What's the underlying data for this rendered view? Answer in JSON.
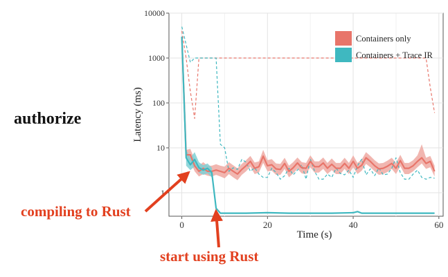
{
  "labels": {
    "side_title": "authorize",
    "annotation_compile": "compiling to Rust",
    "annotation_start": "start using Rust"
  },
  "colors": {
    "annotation": "#e2401f",
    "containers_only": "#e8756a",
    "containers_band": "#efa9a2",
    "trace_ir": "#3fb8c0",
    "trace_band": "#7fd0d5"
  },
  "chart_data": {
    "type": "line",
    "xlabel": "Time (s)",
    "ylabel": "Latency (ms)",
    "x_scale": "linear",
    "y_scale": "log",
    "xlim": [
      -3,
      61
    ],
    "ylim": [
      0.3,
      10000
    ],
    "x_ticks": [
      0,
      20,
      40,
      60
    ],
    "y_ticks": [
      1,
      10,
      100,
      1000,
      10000
    ],
    "y_tick_labels": [
      "1",
      "10",
      "100",
      "1000",
      "10000"
    ],
    "grid": true,
    "legend_position": "top-right",
    "series": [
      {
        "name": "Containers only",
        "style": "solid",
        "color": "#e8756a",
        "x": [
          0,
          1,
          2,
          3,
          4,
          5,
          6,
          7,
          8,
          9,
          10,
          11,
          12,
          13,
          14,
          15,
          16,
          17,
          18,
          19,
          20,
          21,
          22,
          23,
          24,
          25,
          26,
          27,
          28,
          29,
          30,
          31,
          32,
          33,
          34,
          35,
          36,
          37,
          38,
          39,
          40,
          41,
          42,
          43,
          44,
          45,
          46,
          47,
          48,
          49,
          50,
          51,
          52,
          53,
          54,
          55,
          56,
          57,
          58,
          59
        ],
        "y": [
          3000,
          7,
          7,
          4,
          3,
          3.5,
          3,
          3,
          3.2,
          3,
          2.8,
          3.5,
          3,
          2.6,
          3.3,
          4,
          5,
          3.5,
          3.8,
          6.5,
          4,
          4.2,
          3.4,
          3.3,
          4.5,
          3,
          3.6,
          4.6,
          3.6,
          3.5,
          5,
          3.8,
          3.8,
          4.6,
          3.5,
          4.3,
          3.5,
          3.5,
          4.5,
          3.5,
          5,
          3.5,
          4.1,
          6,
          5,
          4,
          3.4,
          3.5,
          3.9,
          4.5,
          3.5,
          5.2,
          3.5,
          3.5,
          4,
          5,
          6,
          4.5,
          5,
          3
        ]
      },
      {
        "name": "Containers + Trace IR",
        "style": "solid",
        "color": "#3fb8c0",
        "x": [
          0,
          1,
          2,
          3,
          4,
          5,
          6,
          7,
          8,
          9,
          10,
          15,
          20,
          25,
          30,
          35,
          40,
          41,
          42,
          45,
          50,
          55,
          59
        ],
        "y": [
          3000,
          6,
          4.2,
          5.5,
          3.6,
          3.2,
          3.5,
          2.8,
          0.45,
          0.35,
          0.35,
          0.35,
          0.36,
          0.35,
          0.35,
          0.35,
          0.36,
          0.38,
          0.35,
          0.35,
          0.35,
          0.35,
          0.35
        ]
      },
      {
        "name": "",
        "style": "dashed",
        "color": "#e8756a",
        "x": [
          0,
          1,
          2,
          3,
          4,
          8,
          10,
          20,
          30,
          40,
          50,
          56,
          57,
          58,
          59
        ],
        "y": [
          4000,
          1000,
          180,
          45,
          1000,
          1000,
          1000,
          1000,
          1000,
          1000,
          1000,
          1000,
          1000,
          220,
          60
        ]
      },
      {
        "name": "",
        "style": "dashed",
        "color": "#3fb8c0",
        "x": [
          0,
          1,
          2,
          3,
          4,
          5,
          6,
          7,
          8,
          9,
          10,
          11,
          12,
          13,
          14,
          15,
          16,
          17,
          18,
          19,
          20,
          21,
          22,
          23,
          24,
          25,
          26,
          27,
          28,
          29,
          30,
          31,
          32,
          33,
          34,
          35,
          36,
          37,
          38,
          39,
          40,
          41,
          42,
          43,
          44,
          45,
          46,
          47,
          48,
          49,
          50,
          51,
          52,
          53,
          54,
          55,
          56,
          57,
          58,
          59
        ],
        "y": [
          5000,
          2000,
          800,
          1000,
          1000,
          1000,
          1000,
          1000,
          1000,
          12,
          10,
          3,
          3.6,
          3.3,
          5.5,
          4.8,
          3,
          3.6,
          2.6,
          2.2,
          2.2,
          3.5,
          2.8,
          2,
          2.4,
          3.5,
          2.5,
          3.2,
          4.2,
          2,
          5.6,
          3,
          2,
          2,
          2.6,
          2.2,
          3.5,
          2.7,
          2.5,
          3.2,
          2.2,
          4,
          5.6,
          2.5,
          3.4,
          2.4,
          3.6,
          2.5,
          2.6,
          3.5,
          6,
          2.8,
          2,
          2,
          2.6,
          3.2,
          2.2,
          2,
          2.2,
          2.1
        ]
      }
    ],
    "bands": [
      {
        "series": "Containers only",
        "x": [
          1,
          2,
          3,
          4,
          5,
          6,
          7,
          8,
          9,
          10,
          11,
          12,
          13,
          14,
          15,
          16,
          17,
          18,
          19,
          20,
          21,
          22,
          23,
          24,
          25,
          26,
          27,
          28,
          29,
          30,
          31,
          32,
          33,
          34,
          35,
          36,
          37,
          38,
          39,
          40,
          41,
          42,
          43,
          44,
          45,
          46,
          47,
          48,
          49,
          50,
          51,
          52,
          53,
          54,
          55,
          56,
          57,
          58,
          59
        ],
        "low": [
          5.5,
          5,
          3,
          2.3,
          2.6,
          2.4,
          2.3,
          2.5,
          2.3,
          2.1,
          2.6,
          2.2,
          1.9,
          2.5,
          3,
          3.8,
          2.6,
          2.8,
          4.6,
          3,
          3.1,
          2.5,
          2.5,
          3.4,
          2.2,
          2.7,
          3.4,
          2.7,
          2.6,
          3.7,
          2.8,
          2.8,
          3.4,
          2.6,
          3.2,
          2.6,
          2.6,
          3.4,
          2.6,
          3.7,
          2.6,
          3.1,
          4.4,
          3.7,
          3,
          2.5,
          2.6,
          2.9,
          3.4,
          2.6,
          3.9,
          2.6,
          2.6,
          3,
          3.7,
          4.5,
          3.4,
          3.7,
          2.3
        ],
        "high": [
          9,
          9.5,
          5.5,
          4,
          4.8,
          4,
          4,
          4.3,
          4,
          3.8,
          4.8,
          4.1,
          3.5,
          4.4,
          5.3,
          6.6,
          4.7,
          5,
          9,
          5.3,
          5.6,
          4.5,
          4.4,
          6,
          4,
          4.8,
          6.1,
          4.8,
          4.6,
          6.8,
          5,
          5,
          6.1,
          4.6,
          5.8,
          4.6,
          4.6,
          6,
          4.6,
          6.8,
          4.6,
          5.5,
          8,
          6.6,
          5.3,
          4.5,
          4.6,
          5.2,
          6,
          4.6,
          7,
          4.6,
          4.6,
          5.3,
          6.8,
          12,
          6,
          6.6,
          4
        ]
      },
      {
        "series": "Containers + Trace IR",
        "x": [
          1,
          2,
          3,
          4,
          5,
          6,
          7,
          8
        ],
        "low": [
          4,
          3.2,
          3.8,
          2.8,
          2.5,
          2.7,
          2.2,
          0.4
        ],
        "high": [
          9,
          6,
          8,
          4.8,
          4.1,
          4.5,
          3.6,
          0.5
        ]
      }
    ]
  }
}
